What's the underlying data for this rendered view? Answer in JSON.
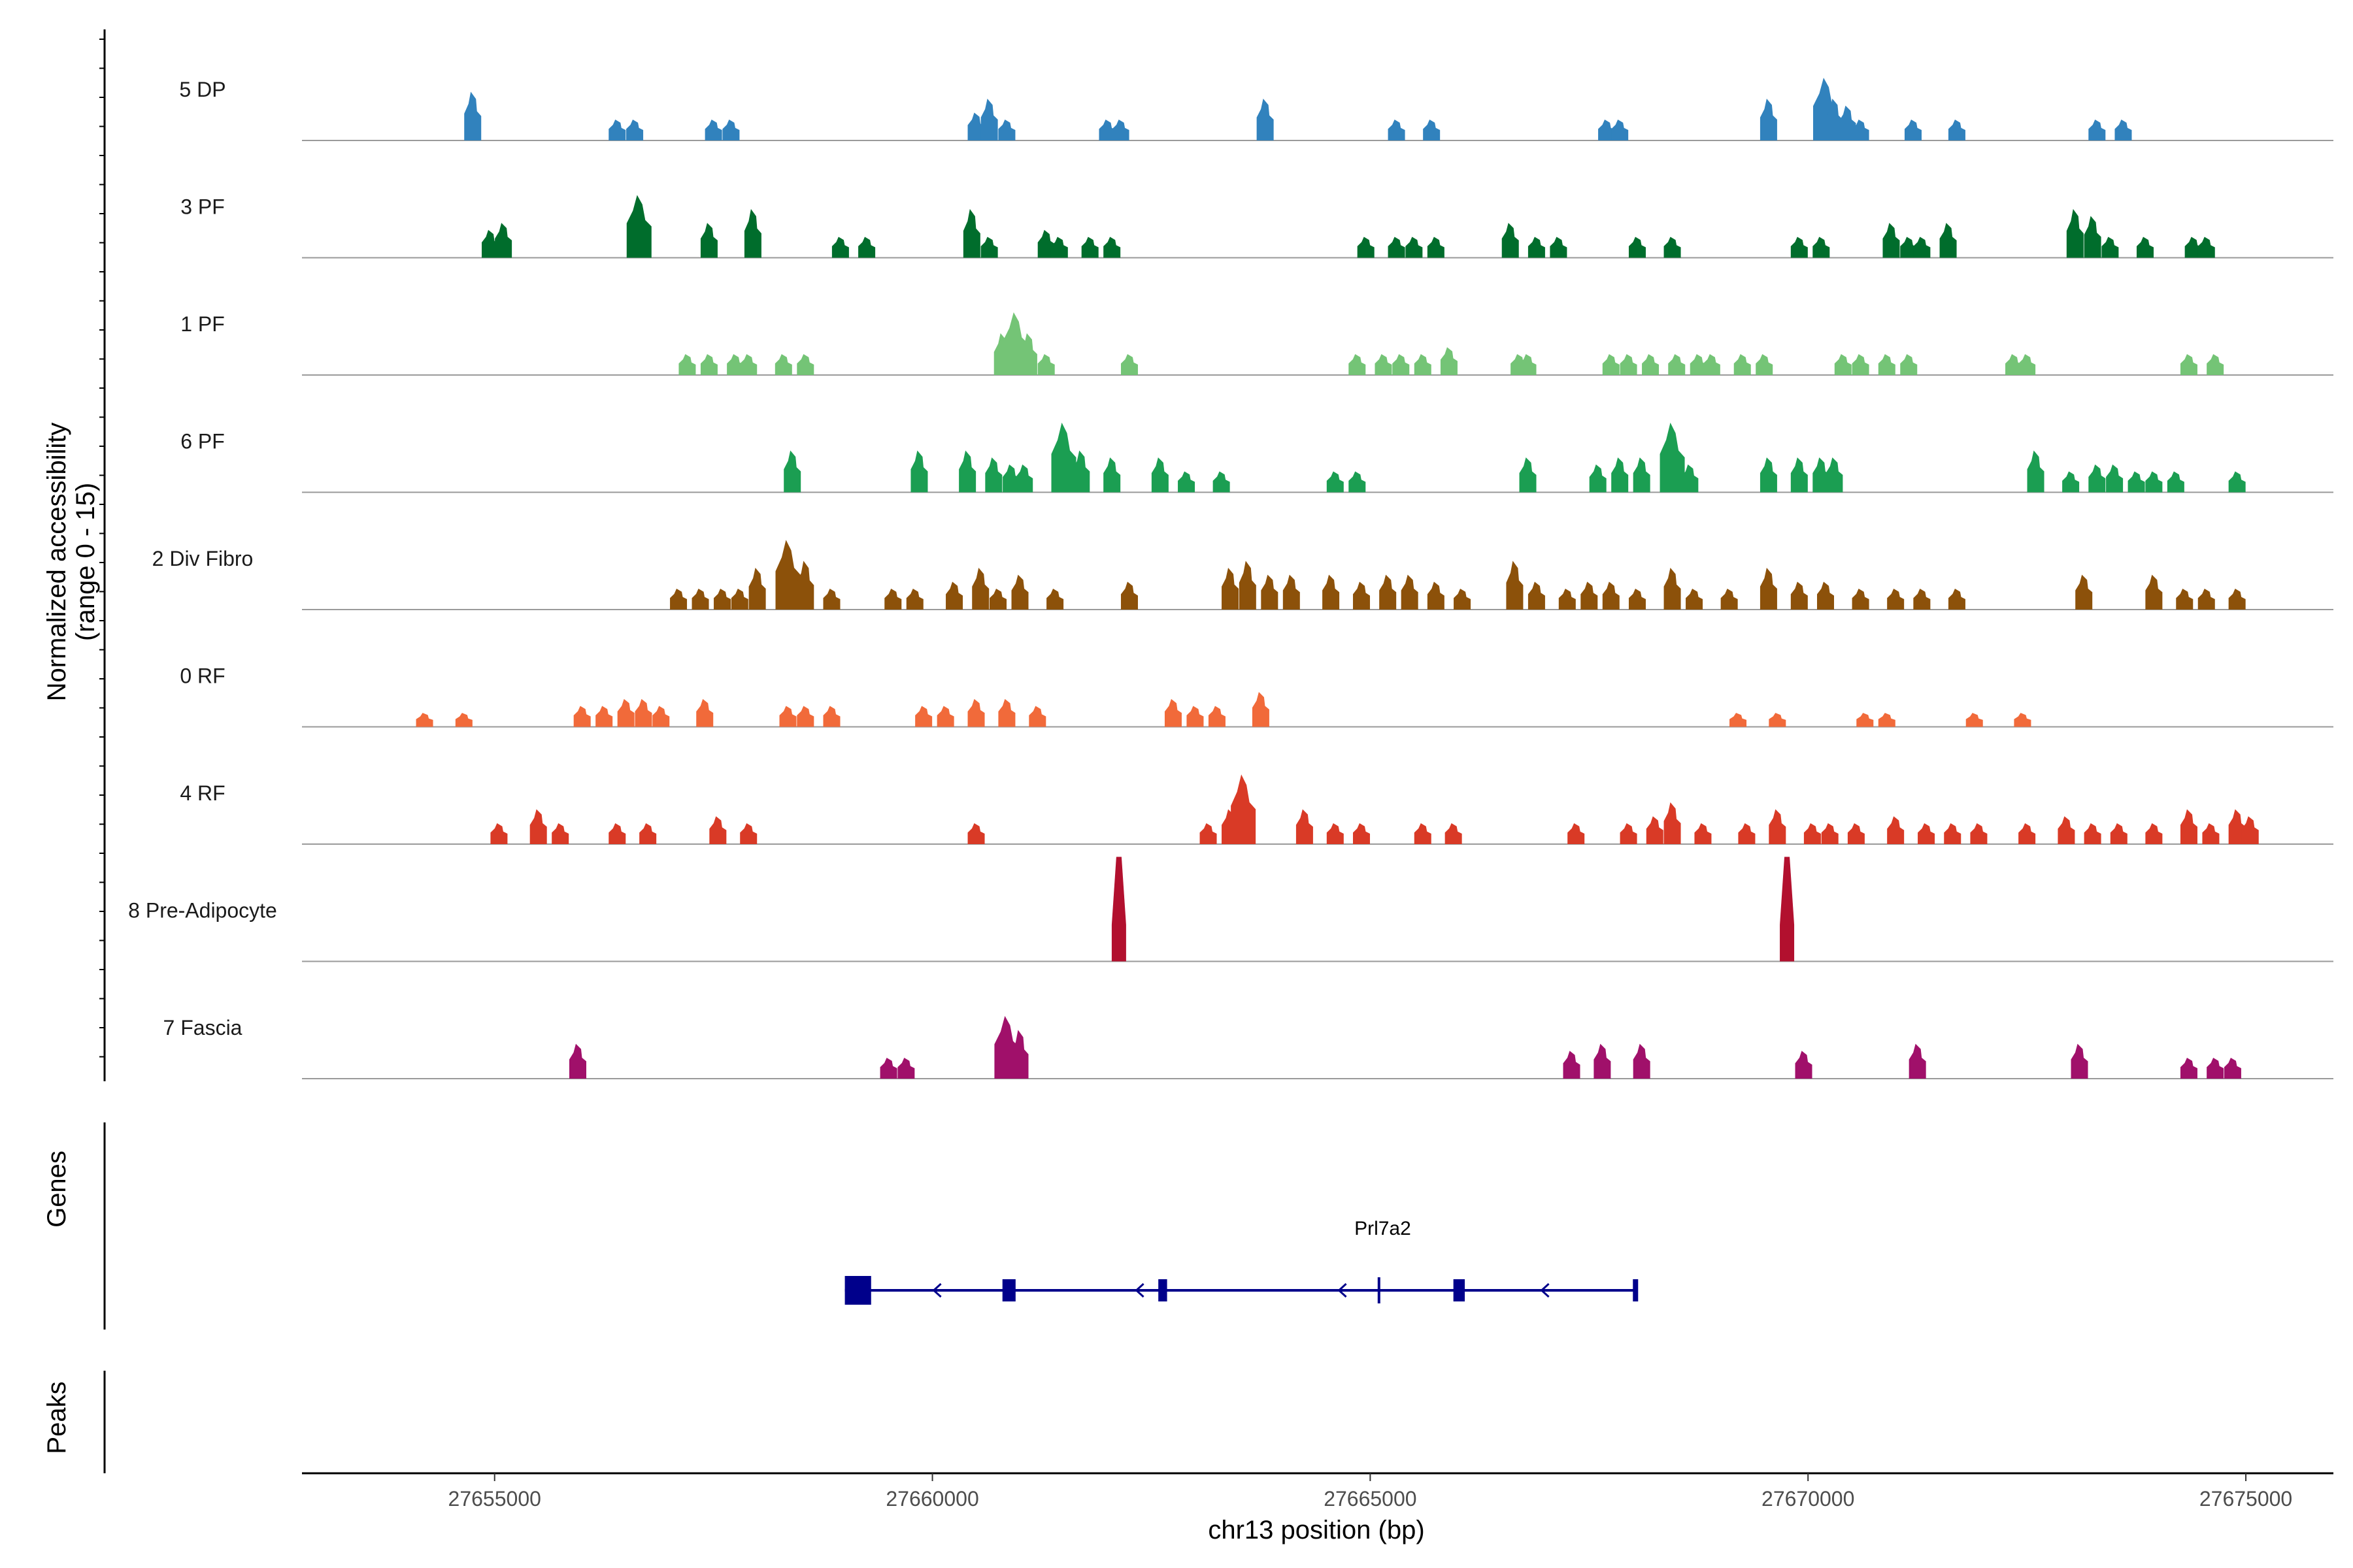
{
  "chart_data": {
    "type": "coverage-track",
    "title": "",
    "ylabel": "Normalized accessibility\n(range 0 - 15)",
    "xlabel": "chr13 position (bp)",
    "xlim": [
      27652800,
      27676000
    ],
    "ylim": [
      0,
      15
    ],
    "x_ticks": [
      27655000,
      27660000,
      27665000,
      27670000,
      27675000
    ],
    "x_tick_labels": [
      "27655000",
      "27660000",
      "27665000",
      "27670000",
      "27675000"
    ],
    "tracks": [
      {
        "name": "5 DP",
        "color": "#3182BD",
        "peaks": [
          [
            27654750,
            7
          ],
          [
            27656400,
            3
          ],
          [
            27656600,
            3
          ],
          [
            27657500,
            3
          ],
          [
            27657700,
            3
          ],
          [
            27660500,
            4
          ],
          [
            27660650,
            6
          ],
          [
            27660850,
            3
          ],
          [
            27662000,
            3
          ],
          [
            27662150,
            3
          ],
          [
            27663800,
            6
          ],
          [
            27665300,
            3
          ],
          [
            27665700,
            3
          ],
          [
            27667700,
            3
          ],
          [
            27667850,
            3
          ],
          [
            27669550,
            6
          ],
          [
            27670200,
            9
          ],
          [
            27670300,
            6
          ],
          [
            27670450,
            5
          ],
          [
            27670600,
            3
          ],
          [
            27671200,
            3
          ],
          [
            27671700,
            3
          ],
          [
            27673300,
            3
          ],
          [
            27673600,
            3
          ]
        ]
      },
      {
        "name": "3 PF",
        "color": "#006D2C",
        "peaks": [
          [
            27654950,
            4
          ],
          [
            27655100,
            5
          ],
          [
            27656650,
            9
          ],
          [
            27657450,
            5
          ],
          [
            27657950,
            7
          ],
          [
            27658950,
            3
          ],
          [
            27659250,
            3
          ],
          [
            27660450,
            7
          ],
          [
            27660650,
            3
          ],
          [
            27661300,
            4
          ],
          [
            27661450,
            3
          ],
          [
            27661800,
            3
          ],
          [
            27662050,
            3
          ],
          [
            27664950,
            3
          ],
          [
            27665300,
            3
          ],
          [
            27665500,
            3
          ],
          [
            27665750,
            3
          ],
          [
            27666600,
            5
          ],
          [
            27666900,
            3
          ],
          [
            27667150,
            3
          ],
          [
            27668050,
            3
          ],
          [
            27668450,
            3
          ],
          [
            27669900,
            3
          ],
          [
            27670150,
            3
          ],
          [
            27670950,
            5
          ],
          [
            27671150,
            3
          ],
          [
            27671300,
            3
          ],
          [
            27671600,
            5
          ],
          [
            27673050,
            7
          ],
          [
            27673250,
            6
          ],
          [
            27673450,
            3
          ],
          [
            27673850,
            3
          ],
          [
            27674400,
            3
          ],
          [
            27674550,
            3
          ]
        ]
      },
      {
        "name": "1 PF",
        "color": "#74C476",
        "peaks": [
          [
            27657200,
            3
          ],
          [
            27657450,
            3
          ],
          [
            27657750,
            3
          ],
          [
            27657900,
            3
          ],
          [
            27658300,
            3
          ],
          [
            27658550,
            3
          ],
          [
            27660800,
            6
          ],
          [
            27660950,
            9
          ],
          [
            27661100,
            6
          ],
          [
            27661300,
            3
          ],
          [
            27662250,
            3
          ],
          [
            27664850,
            3
          ],
          [
            27665150,
            3
          ],
          [
            27665350,
            3
          ],
          [
            27665600,
            3
          ],
          [
            27665900,
            4
          ],
          [
            27666700,
            3
          ],
          [
            27666800,
            3
          ],
          [
            27667750,
            3
          ],
          [
            27667950,
            3
          ],
          [
            27668200,
            3
          ],
          [
            27668500,
            3
          ],
          [
            27668750,
            3
          ],
          [
            27668900,
            3
          ],
          [
            27669250,
            3
          ],
          [
            27669500,
            3
          ],
          [
            27670400,
            3
          ],
          [
            27670600,
            3
          ],
          [
            27670900,
            3
          ],
          [
            27671150,
            3
          ],
          [
            27672350,
            3
          ],
          [
            27672500,
            3
          ],
          [
            27674350,
            3
          ],
          [
            27674650,
            3
          ]
        ]
      },
      {
        "name": "6 PF",
        "color": "#1B9E52",
        "peaks": [
          [
            27658400,
            6
          ],
          [
            27659850,
            6
          ],
          [
            27660400,
            6
          ],
          [
            27660700,
            5
          ],
          [
            27660900,
            4
          ],
          [
            27661050,
            4
          ],
          [
            27661500,
            10
          ],
          [
            27661700,
            6
          ],
          [
            27662050,
            5
          ],
          [
            27662600,
            5
          ],
          [
            27662900,
            3
          ],
          [
            27663300,
            3
          ],
          [
            27664600,
            3
          ],
          [
            27664850,
            3
          ],
          [
            27666800,
            5
          ],
          [
            27667600,
            4
          ],
          [
            27667850,
            5
          ],
          [
            27668100,
            5
          ],
          [
            27668450,
            10
          ],
          [
            27668650,
            4
          ],
          [
            27669550,
            5
          ],
          [
            27669900,
            5
          ],
          [
            27670150,
            5
          ],
          [
            27670300,
            5
          ],
          [
            27672600,
            6
          ],
          [
            27673000,
            3
          ],
          [
            27673300,
            4
          ],
          [
            27673500,
            4
          ],
          [
            27673750,
            3
          ],
          [
            27673950,
            3
          ],
          [
            27674200,
            3
          ],
          [
            27674900,
            3
          ]
        ]
      },
      {
        "name": "2 Div Fibro",
        "color": "#8C510A",
        "peaks": [
          [
            27657100,
            3
          ],
          [
            27657350,
            3
          ],
          [
            27657600,
            3
          ],
          [
            27657800,
            3
          ],
          [
            27658000,
            6
          ],
          [
            27658350,
            10
          ],
          [
            27658550,
            7
          ],
          [
            27658850,
            3
          ],
          [
            27659550,
            3
          ],
          [
            27659800,
            3
          ],
          [
            27660250,
            4
          ],
          [
            27660550,
            6
          ],
          [
            27660750,
            3
          ],
          [
            27661000,
            5
          ],
          [
            27661400,
            3
          ],
          [
            27662250,
            4
          ],
          [
            27663400,
            6
          ],
          [
            27663600,
            7
          ],
          [
            27663850,
            5
          ],
          [
            27664100,
            5
          ],
          [
            27664550,
            5
          ],
          [
            27664900,
            4
          ],
          [
            27665200,
            5
          ],
          [
            27665450,
            5
          ],
          [
            27665750,
            4
          ],
          [
            27666050,
            3
          ],
          [
            27666650,
            7
          ],
          [
            27666900,
            4
          ],
          [
            27667250,
            3
          ],
          [
            27667500,
            4
          ],
          [
            27667750,
            4
          ],
          [
            27668050,
            3
          ],
          [
            27668450,
            6
          ],
          [
            27668700,
            3
          ],
          [
            27669100,
            3
          ],
          [
            27669550,
            6
          ],
          [
            27669900,
            4
          ],
          [
            27670200,
            4
          ],
          [
            27670600,
            3
          ],
          [
            27671000,
            3
          ],
          [
            27671300,
            3
          ],
          [
            27671700,
            3
          ],
          [
            27673150,
            5
          ],
          [
            27673950,
            5
          ],
          [
            27674300,
            3
          ],
          [
            27674550,
            3
          ],
          [
            27674900,
            3
          ]
        ]
      },
      {
        "name": "0 RF",
        "color": "#F16A3A",
        "peaks": [
          [
            27654200,
            2
          ],
          [
            27654650,
            2
          ],
          [
            27656000,
            3
          ],
          [
            27656250,
            3
          ],
          [
            27656500,
            4
          ],
          [
            27656700,
            4
          ],
          [
            27656900,
            3
          ],
          [
            27657400,
            4
          ],
          [
            27658350,
            3
          ],
          [
            27658550,
            3
          ],
          [
            27658850,
            3
          ],
          [
            27659900,
            3
          ],
          [
            27660150,
            3
          ],
          [
            27660500,
            4
          ],
          [
            27660850,
            4
          ],
          [
            27661200,
            3
          ],
          [
            27662750,
            4
          ],
          [
            27663000,
            3
          ],
          [
            27663250,
            3
          ],
          [
            27663750,
            5
          ],
          [
            27669200,
            2
          ],
          [
            27669650,
            2
          ],
          [
            27670650,
            2
          ],
          [
            27670900,
            2
          ],
          [
            27671900,
            2
          ],
          [
            27672450,
            2
          ]
        ]
      },
      {
        "name": "4 RF",
        "color": "#D93A26",
        "peaks": [
          [
            27655050,
            3
          ],
          [
            27655500,
            5
          ],
          [
            27655750,
            3
          ],
          [
            27656400,
            3
          ],
          [
            27656750,
            3
          ],
          [
            27657550,
            4
          ],
          [
            27657900,
            3
          ],
          [
            27660500,
            3
          ],
          [
            27663150,
            3
          ],
          [
            27663400,
            5
          ],
          [
            27663550,
            10
          ],
          [
            27664250,
            5
          ],
          [
            27664600,
            3
          ],
          [
            27664900,
            3
          ],
          [
            27665600,
            3
          ],
          [
            27665950,
            3
          ],
          [
            27667350,
            3
          ],
          [
            27667950,
            3
          ],
          [
            27668250,
            4
          ],
          [
            27668450,
            6
          ],
          [
            27668800,
            3
          ],
          [
            27669300,
            3
          ],
          [
            27669650,
            5
          ],
          [
            27670050,
            3
          ],
          [
            27670250,
            3
          ],
          [
            27670550,
            3
          ],
          [
            27671000,
            4
          ],
          [
            27671350,
            3
          ],
          [
            27671650,
            3
          ],
          [
            27671950,
            3
          ],
          [
            27672500,
            3
          ],
          [
            27672950,
            4
          ],
          [
            27673250,
            3
          ],
          [
            27673550,
            3
          ],
          [
            27673950,
            3
          ],
          [
            27674350,
            5
          ],
          [
            27674600,
            3
          ],
          [
            27674900,
            5
          ],
          [
            27675050,
            4
          ]
        ]
      },
      {
        "name": "8 Pre-Adipocyte",
        "color": "#B2102E",
        "peaks": [
          [
            27662130,
            15
          ],
          [
            27669760,
            15
          ]
        ]
      },
      {
        "name": "7 Fascia",
        "color": "#A0106A",
        "peaks": [
          [
            27655950,
            5
          ],
          [
            27659500,
            3
          ],
          [
            27659700,
            3
          ],
          [
            27660850,
            9
          ],
          [
            27661000,
            7
          ],
          [
            27667300,
            4
          ],
          [
            27667650,
            5
          ],
          [
            27668100,
            5
          ],
          [
            27669950,
            4
          ],
          [
            27671250,
            5
          ],
          [
            27673100,
            5
          ],
          [
            27674350,
            3
          ],
          [
            27674650,
            3
          ],
          [
            27674850,
            3
          ]
        ]
      }
    ],
    "genes": [
      {
        "name": "Prl7a2",
        "strand": "-",
        "start": 27659000,
        "end": 27668030,
        "color": "#00008B",
        "exons": [
          [
            27659000,
            27659300
          ],
          [
            27660800,
            27660950
          ],
          [
            27662580,
            27662680
          ],
          [
            27665950,
            27666080
          ],
          [
            27668000,
            27668030
          ]
        ],
        "marks": [
          27665100
        ]
      }
    ],
    "panel_labels": [
      "Genes",
      "Peaks"
    ]
  }
}
